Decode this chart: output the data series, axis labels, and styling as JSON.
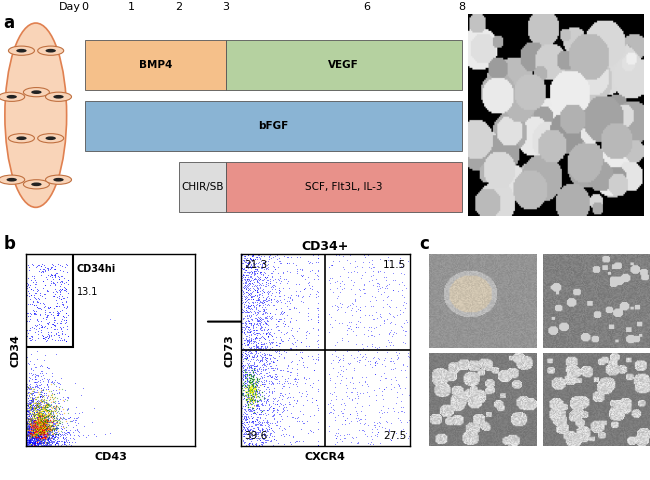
{
  "fig_width": 6.5,
  "fig_height": 4.8,
  "dpi": 100,
  "bg_color": "#ffffff",
  "panel_a_label": "a",
  "panel_b_label": "b",
  "panel_c_label": "c",
  "timeline_days": [
    0,
    1,
    2,
    3,
    6,
    8
  ],
  "timeline_label": "Day",
  "bars": [
    {
      "label": "BMP4",
      "start": 0,
      "end": 3,
      "row": 0,
      "color": "#F5C08A",
      "text_color": "#000000",
      "fontweight": "bold"
    },
    {
      "label": "VEGF",
      "start": 3,
      "end": 8,
      "row": 0,
      "color": "#B5D1A0",
      "text_color": "#000000",
      "fontweight": "bold"
    },
    {
      "label": "bFGF",
      "start": 0,
      "end": 8,
      "row": 1,
      "color": "#8AB4D4",
      "text_color": "#000000",
      "fontweight": "bold"
    },
    {
      "label": "CHIR/SB",
      "start": 2,
      "end": 3,
      "row": 2,
      "color": "#DDDDDD",
      "text_color": "#000000",
      "fontweight": "normal"
    },
    {
      "label": "SCF, Flt3L, IL-3",
      "start": 3,
      "end": 8,
      "row": 2,
      "color": "#E8918A",
      "text_color": "#000000",
      "fontweight": "normal"
    }
  ],
  "flow1_xlabel": "CD43",
  "flow1_ylabel": "CD34",
  "flow1_gate_label": "CD34hi",
  "flow1_gate_value": "13.1",
  "flow2_xlabel": "CXCR4",
  "flow2_ylabel": "CD73",
  "flow2_title": "CD34+",
  "flow2_q1": "21.3",
  "flow2_q2": "11.5",
  "flow2_q3": "39.6",
  "flow2_q4": "27.5"
}
